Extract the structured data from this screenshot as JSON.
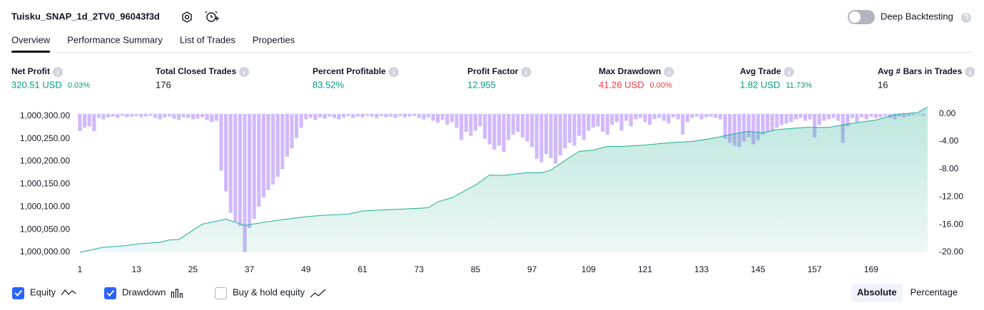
{
  "header": {
    "title": "Tuisku_SNAP_1d_2TV0_96043f3d",
    "toggle_label": "Deep Backtesting"
  },
  "tabs": [
    "Overview",
    "Performance Summary",
    "List of Trades",
    "Properties"
  ],
  "active_tab": 0,
  "metrics": [
    {
      "label": "Net Profit",
      "value": "320.51 USD",
      "extra": "0.03%",
      "color": "#089981"
    },
    {
      "label": "Total Closed Trades",
      "value": "176",
      "color": "#131722"
    },
    {
      "label": "Percent Profitable",
      "value": "83.52%",
      "color": "#089981"
    },
    {
      "label": "Profit Factor",
      "value": "12.955",
      "color": "#089981"
    },
    {
      "label": "Max Drawdown",
      "value": "41.26 USD",
      "extra": "0.00%",
      "color": "#f23645"
    },
    {
      "label": "Avg Trade",
      "value": "1.82 USD",
      "extra": "11.73%",
      "color": "#089981"
    },
    {
      "label": "Avg # Bars in Trades",
      "value": "16",
      "color": "#131722"
    }
  ],
  "chart_data": {
    "type": "combo",
    "xlim": [
      1,
      181
    ],
    "xticks": [
      1,
      13,
      25,
      37,
      49,
      61,
      73,
      85,
      97,
      109,
      121,
      133,
      145,
      157,
      169
    ],
    "ylim": [
      1000000,
      1000320
    ],
    "yticks": [
      {
        "value": 1000000,
        "label": "1,000,000.00"
      },
      {
        "value": 1000050,
        "label": "1,000,050.00"
      },
      {
        "value": 1000100,
        "label": "1,000,100.00"
      },
      {
        "value": 1000150,
        "label": "1,000,150.00"
      },
      {
        "value": 1000200,
        "label": "1,000,200.00"
      },
      {
        "value": 1000250,
        "label": "1,000,250.00"
      },
      {
        "value": 1000300,
        "label": "1,000,300.00"
      }
    ],
    "y2lim": [
      -20,
      1
    ],
    "y2ticks": [
      {
        "value": 0,
        "label": "0.00"
      },
      {
        "value": -4,
        "label": "-4.00"
      },
      {
        "value": -8,
        "label": "-8.00"
      },
      {
        "value": -12,
        "label": "-12.00"
      },
      {
        "value": -16,
        "label": "-16.00"
      },
      {
        "value": -20,
        "label": "-20.00"
      }
    ],
    "equity": {
      "name": "Equity",
      "color": "#22ab94",
      "x": [
        1,
        5,
        6,
        10,
        14,
        18,
        20,
        22,
        27,
        32,
        36,
        37,
        42,
        48,
        52,
        58,
        61,
        67,
        73,
        75,
        77,
        80,
        85,
        88,
        91,
        94,
        96,
        99,
        101,
        104,
        107,
        110,
        113,
        116,
        121,
        126,
        131,
        136,
        140,
        143,
        146,
        149,
        155,
        160,
        165,
        170,
        174,
        179,
        181
      ],
      "values": [
        1000000,
        1000009,
        1000011,
        1000014,
        1000019,
        1000022,
        1000027,
        1000028,
        1000062,
        1000073,
        1000059,
        1000061,
        1000069,
        1000077,
        1000081,
        1000084,
        1000091,
        1000094,
        1000097,
        1000098,
        1000111,
        1000120,
        1000148,
        1000170,
        1000169,
        1000173,
        1000175,
        1000175,
        1000181,
        1000202,
        1000222,
        1000225,
        1000233,
        1000233,
        1000236,
        1000241,
        1000244,
        1000252,
        1000261,
        1000266,
        1000263,
        1000270,
        1000275,
        1000275,
        1000284,
        1000291,
        1000303,
        1000308,
        1000320
      ]
    },
    "drawdown": {
      "name": "Drawdown",
      "color": "#c9aefb",
      "axis": "y2",
      "values": [
        -2.5,
        -2.0,
        -1.8,
        -2.5,
        -0.6,
        -0.8,
        -0.5,
        -0.4,
        -0.6,
        -0.3,
        -0.5,
        -0.4,
        -0.3,
        -0.5,
        -0.4,
        -0.3,
        -0.6,
        -0.8,
        -0.5,
        -0.4,
        -0.7,
        -0.9,
        -0.5,
        -0.6,
        -0.8,
        -0.7,
        -0.5,
        -0.9,
        -1.2,
        -1.0,
        -8.2,
        -11.2,
        -14.3,
        -15.6,
        -16.2,
        -20.0,
        -16.5,
        -15.2,
        -13.4,
        -12.1,
        -11.0,
        -10.2,
        -9.1,
        -8.0,
        -6.2,
        -5.0,
        -3.5,
        -2.0,
        -0.8,
        -0.6,
        -0.9,
        -0.5,
        -0.7,
        -0.4,
        -0.6,
        -0.8,
        -0.5,
        -0.3,
        -0.6,
        -0.4,
        -0.5,
        -0.3,
        -0.4,
        -0.6,
        -0.3,
        -0.5,
        -0.4,
        -0.6,
        -0.3,
        -0.5,
        -0.4,
        -0.3,
        -0.6,
        -0.8,
        -0.5,
        -1.0,
        -1.3,
        -0.9,
        -1.6,
        -1.2,
        -2.0,
        -3.8,
        -2.6,
        -3.2,
        -2.4,
        -1.8,
        -3.6,
        -4.4,
        -5.2,
        -4.6,
        -5.5,
        -3.8,
        -3.0,
        -2.6,
        -3.4,
        -4.0,
        -4.8,
        -6.5,
        -7.0,
        -5.8,
        -6.4,
        -7.2,
        -6.0,
        -5.0,
        -4.2,
        -4.6,
        -3.2,
        -3.8,
        -2.4,
        -2.0,
        -1.8,
        -2.6,
        -3.0,
        -1.6,
        -1.2,
        -2.4,
        -1.0,
        -1.8,
        -0.8,
        -0.6,
        -1.2,
        -1.6,
        -0.8,
        -0.6,
        -1.0,
        -1.4,
        -0.5,
        -0.8,
        -3.0,
        -1.2,
        -0.6,
        -0.4,
        -0.8,
        -0.5,
        -0.4,
        -0.6,
        -0.8,
        -3.6,
        -4.2,
        -4.6,
        -4.8,
        -4.0,
        -3.4,
        -4.4,
        -3.8,
        -3.0,
        -2.6,
        -2.4,
        -2.0,
        -1.6,
        -1.4,
        -1.2,
        -0.8,
        -0.6,
        -1.0,
        -0.8,
        -3.4,
        -1.6,
        -1.0,
        -0.8,
        -0.6,
        -1.0,
        -4.2,
        -1.8,
        -0.6,
        -1.2,
        -0.5,
        -0.8,
        -0.4,
        -0.6,
        -0.5,
        -0.3,
        -0.6,
        -0.8,
        -0.4,
        -0.5,
        -0.3,
        -0.2,
        -0.1,
        -0.3
      ]
    }
  },
  "legend": [
    {
      "label": "Equity",
      "checked": true
    },
    {
      "label": "Drawdown",
      "checked": true
    },
    {
      "label": "Buy & hold equity",
      "checked": false
    }
  ],
  "scale_buttons": [
    "Absolute",
    "Percentage"
  ],
  "active_scale": 0
}
